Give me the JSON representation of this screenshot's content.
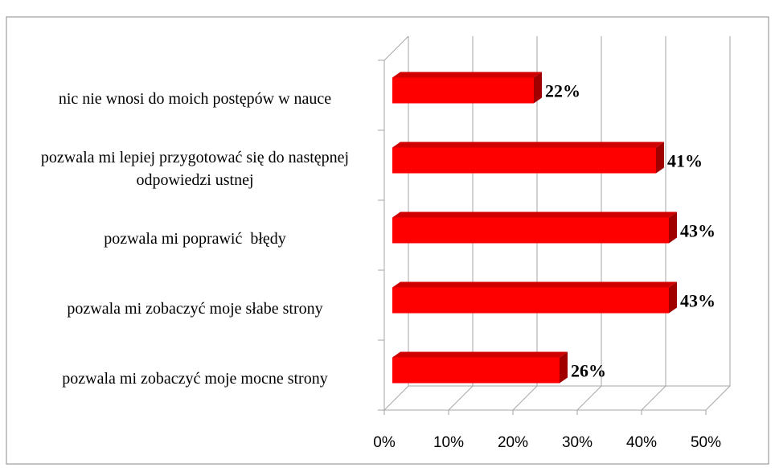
{
  "chart_data": {
    "type": "bar3d_horizontal",
    "categories": [
      "nic nie wnosi do moich postępów w nauce",
      "pozwala mi lepiej przygotować się do następnej odpowiedzi ustnej",
      "pozwala mi poprawić  błędy",
      "pozwala mi zobaczyć moje słabe strony",
      "pozwala mi zobaczyć moje mocne strony"
    ],
    "values": [
      22,
      41,
      43,
      43,
      26
    ],
    "value_labels": [
      "22%",
      "41%",
      "43%",
      "43%",
      "26%"
    ],
    "color": "#ff0000",
    "xlim": [
      0,
      50
    ],
    "xticks": [
      {
        "value": 0,
        "label": "0%"
      },
      {
        "value": 10,
        "label": "10%"
      },
      {
        "value": 20,
        "label": "20%"
      },
      {
        "value": 30,
        "label": "30%"
      },
      {
        "value": 40,
        "label": "40%"
      },
      {
        "value": 50,
        "label": "50%"
      }
    ],
    "grid": true
  }
}
